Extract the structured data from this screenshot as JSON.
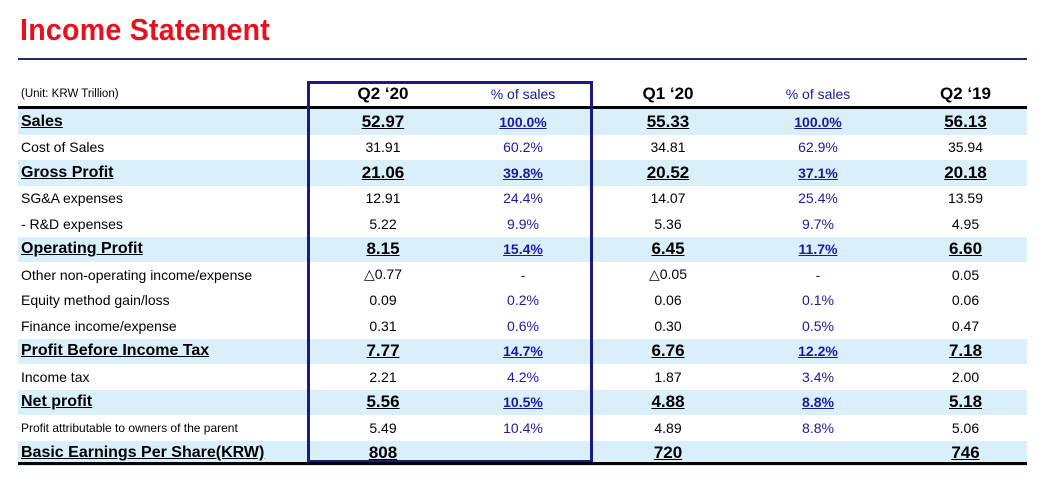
{
  "title": "Income Statement",
  "unit": "(Unit: KRW Trillion)",
  "columns": [
    "Q2 ‘20",
    "% of sales",
    "Q1 ‘20",
    "% of sales",
    "Q2 ‘19"
  ],
  "rows": [
    {
      "label": "Sales",
      "highlight": true,
      "values": [
        "52.97",
        "100.0%",
        "55.33",
        "100.0%",
        "56.13"
      ]
    },
    {
      "label": "Cost of Sales",
      "highlight": false,
      "values": [
        "31.91",
        "60.2%",
        "34.81",
        "62.9%",
        "35.94"
      ]
    },
    {
      "label": "Gross Profit",
      "highlight": true,
      "values": [
        "21.06",
        "39.8%",
        "20.52",
        "37.1%",
        "20.18"
      ]
    },
    {
      "label": "SG&A expenses",
      "highlight": false,
      "values": [
        "12.91",
        "24.4%",
        "14.07",
        "25.4%",
        "13.59"
      ]
    },
    {
      "label": " - R&D expenses",
      "highlight": false,
      "values": [
        "5.22",
        "9.9%",
        "5.36",
        "9.7%",
        "4.95"
      ]
    },
    {
      "label": "Operating Profit",
      "highlight": true,
      "values": [
        "8.15",
        "15.4%",
        "6.45",
        "11.7%",
        "6.60"
      ]
    },
    {
      "label": "Other non-operating income/expense",
      "highlight": false,
      "values": [
        "△0.77",
        "-",
        "△0.05",
        "-",
        "0.05"
      ]
    },
    {
      "label": "Equity method gain/loss",
      "highlight": false,
      "values": [
        "0.09",
        "0.2%",
        "0.06",
        "0.1%",
        "0.06"
      ]
    },
    {
      "label": "Finance income/expense",
      "highlight": false,
      "values": [
        "0.31",
        "0.6%",
        "0.30",
        "0.5%",
        "0.47"
      ]
    },
    {
      "label": "Profit Before Income Tax",
      "highlight": true,
      "values": [
        "7.77",
        "14.7%",
        "6.76",
        "12.2%",
        "7.18"
      ]
    },
    {
      "label": "Income tax",
      "highlight": false,
      "values": [
        "2.21",
        "4.2%",
        "1.87",
        "3.4%",
        "2.00"
      ]
    },
    {
      "label": "Net profit",
      "highlight": true,
      "values": [
        "5.56",
        "10.5%",
        "4.88",
        "8.8%",
        "5.18"
      ]
    },
    {
      "label": "Profit attributable to owners of the parent",
      "highlight": false,
      "small": true,
      "values": [
        "5.49",
        "10.4%",
        "4.89",
        "8.8%",
        "5.06"
      ]
    },
    {
      "label": "Basic Earnings Per Share(KRW)",
      "highlight": true,
      "small": true,
      "values": [
        "808",
        "",
        "720",
        "",
        "746"
      ]
    }
  ],
  "colors": {
    "title": "#e8101e",
    "highlight": "#d9f0fb",
    "percent_text": "#1a1aa0",
    "box_border": "#1a1a80"
  }
}
